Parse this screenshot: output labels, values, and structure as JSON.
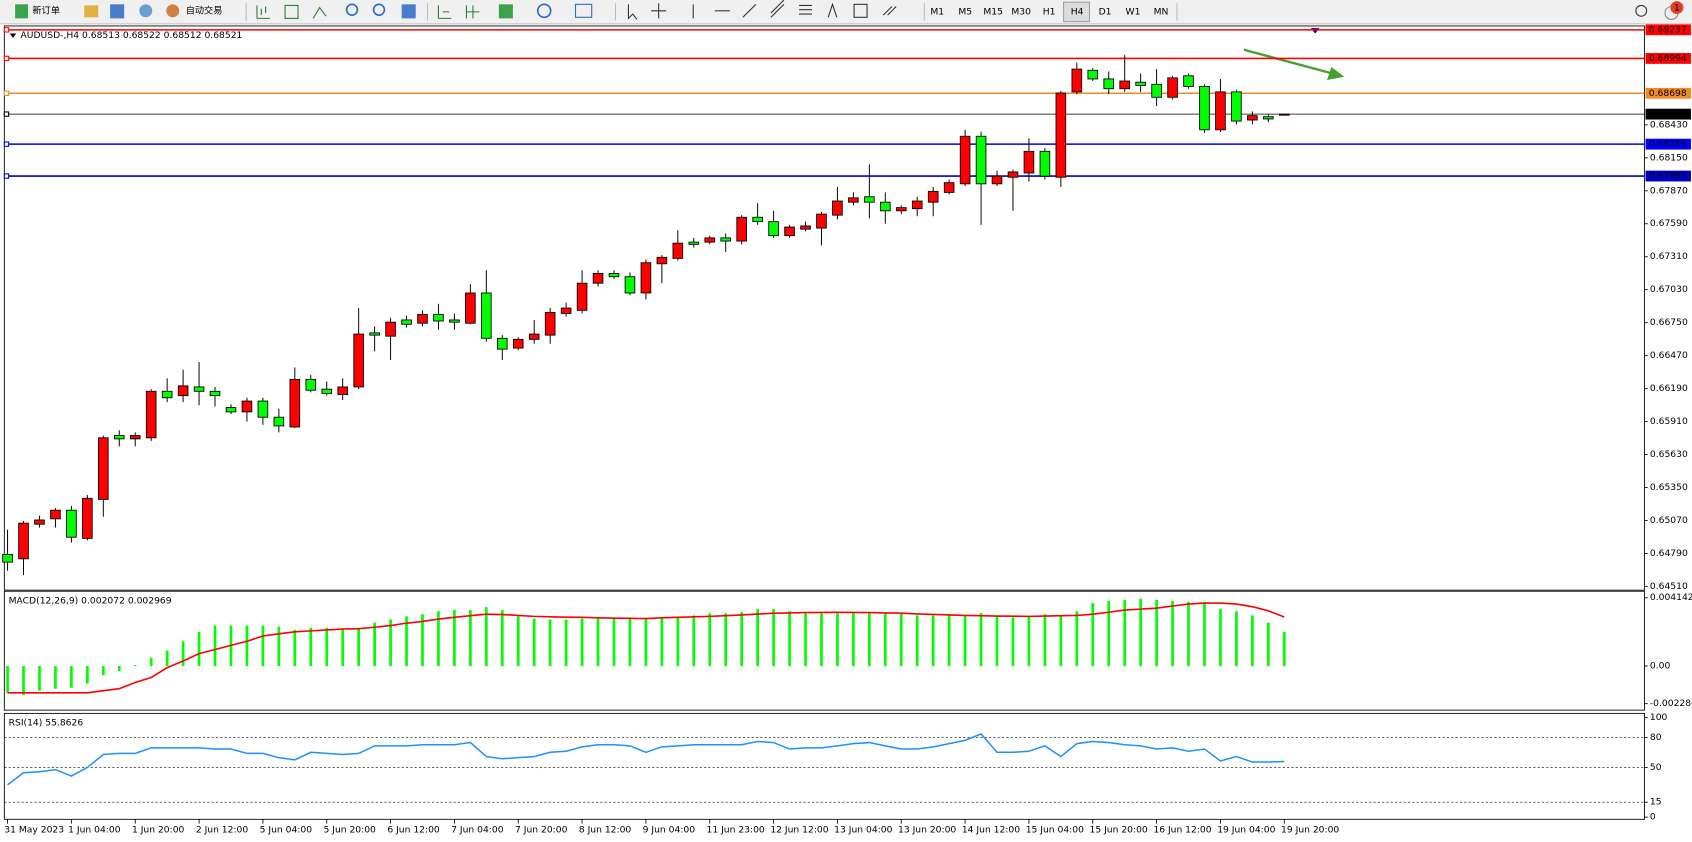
{
  "toolbar": {
    "buttons": [
      "新订单",
      "自动交易"
    ],
    "timeframes": [
      "M1",
      "M5",
      "M15",
      "M30",
      "H1",
      "H4",
      "D1",
      "W1",
      "MN"
    ],
    "badge": 1
  },
  "chart_data": [
    {
      "type": "candlestick",
      "title": "AUDUSD-,H4  0.68513 0.68522 0.68512 0.68521",
      "up_color": "#ff0000",
      "down_color": "#00ff00",
      "categories": [
        "31 May 2023",
        null,
        null,
        null,
        "1 Jun 04:00",
        null,
        null,
        null,
        "1 Jun 20:00",
        null,
        null,
        null,
        "2 Jun 12:00",
        null,
        null,
        null,
        "5 Jun 04:00",
        null,
        null,
        null,
        "5 Jun 20:00",
        null,
        null,
        null,
        "6 Jun 12:00",
        null,
        null,
        null,
        "7 Jun 04:00",
        null,
        null,
        null,
        "7 Jun 20:00",
        null,
        null,
        null,
        "8 Jun 12:00",
        null,
        null,
        null,
        "9 Jun 04:00",
        null,
        null,
        null,
        "11 Jun 23:00",
        null,
        null,
        null,
        "12 Jun 12:00",
        null,
        null,
        null,
        "13 Jun 04:00",
        null,
        null,
        null,
        "13 Jun 20:00",
        null,
        null,
        null,
        "14 Jun 12:00",
        null,
        null,
        null,
        "15 Jun 04:00",
        null,
        null,
        null,
        "15 Jun 20:00",
        null,
        null,
        null,
        "16 Jun 12:00",
        null,
        null,
        null,
        "19 Jun 04:00",
        null,
        null,
        null,
        "19 Jun 20:00"
      ],
      "open": [
        0.64781,
        0.64744,
        0.65038,
        0.65084,
        0.65157,
        0.64918,
        0.65249,
        0.65791,
        0.65763,
        0.65772,
        0.66167,
        0.6613,
        0.66204,
        0.66167,
        0.66029,
        0.65992,
        0.66084,
        0.65947,
        0.65864,
        0.66268,
        0.66185,
        0.66139,
        0.66204,
        0.66663,
        0.66635,
        0.66773,
        0.66745,
        0.66819,
        0.66773,
        0.66745,
        0.67002,
        0.66617,
        0.66534,
        0.66608,
        0.66644,
        0.66828,
        0.66855,
        0.67085,
        0.67168,
        0.6714,
        0.67002,
        0.6725,
        0.67296,
        0.67434,
        0.67434,
        0.6747,
        0.67443,
        0.67645,
        0.67608,
        0.67489,
        0.67544,
        0.67553,
        0.67663,
        0.67773,
        0.67819,
        0.67773,
        0.677,
        0.67718,
        0.67773,
        0.67856,
        0.67929,
        0.68333,
        0.67929,
        0.67985,
        0.68021,
        0.68205,
        0.67985,
        0.6871,
        0.68893,
        0.6882,
        0.68737,
        0.68792,
        0.68774,
        0.68664,
        0.68847,
        0.68756,
        0.68388,
        0.6871,
        0.68471,
        0.68499,
        0.68513
      ],
      "high": [
        0.64992,
        0.65065,
        0.65111,
        0.65175,
        0.65194,
        0.65286,
        0.65791,
        0.65836,
        0.65818,
        0.66185,
        0.66277,
        0.6635,
        0.66415,
        0.66204,
        0.66057,
        0.66112,
        0.66112,
        0.6602,
        0.66369,
        0.66305,
        0.6625,
        0.66277,
        0.66874,
        0.66718,
        0.66791,
        0.66809,
        0.66855,
        0.6691,
        0.66828,
        0.67076,
        0.67195,
        0.66644,
        0.66626,
        0.66773,
        0.66874,
        0.6692,
        0.67195,
        0.67195,
        0.67195,
        0.67177,
        0.67287,
        0.67324,
        0.67535,
        0.6747,
        0.67489,
        0.67507,
        0.67663,
        0.67764,
        0.677,
        0.67581,
        0.67608,
        0.67691,
        0.67902,
        0.67856,
        0.68095,
        0.67856,
        0.67746,
        0.67819,
        0.67902,
        0.67966,
        0.68388,
        0.6837,
        0.6804,
        0.68049,
        0.68315,
        0.68232,
        0.68719,
        0.68958,
        0.68912,
        0.68884,
        0.69022,
        0.68866,
        0.68903,
        0.68847,
        0.68866,
        0.68774,
        0.6882,
        0.68728,
        0.68544,
        0.68517,
        0.68522
      ],
      "low": [
        0.64643,
        0.64606,
        0.6501,
        0.6501,
        0.64882,
        0.649,
        0.65102,
        0.65699,
        0.65699,
        0.65745,
        0.66075,
        0.66075,
        0.66048,
        0.66038,
        0.65974,
        0.6591,
        0.65882,
        0.65818,
        0.65855,
        0.66158,
        0.6613,
        0.66093,
        0.66185,
        0.66507,
        0.66433,
        0.66709,
        0.66718,
        0.6669,
        0.6669,
        0.66736,
        0.66589,
        0.66433,
        0.66516,
        0.66571,
        0.66571,
        0.668,
        0.66828,
        0.67057,
        0.67122,
        0.66984,
        0.66947,
        0.67085,
        0.67278,
        0.67388,
        0.67415,
        0.67351,
        0.67415,
        0.67581,
        0.6747,
        0.6747,
        0.67526,
        0.67406,
        0.67627,
        0.67746,
        0.67636,
        0.6759,
        0.67672,
        0.67654,
        0.67654,
        0.67838,
        0.67911,
        0.67581,
        0.67911,
        0.677,
        0.67948,
        0.67966,
        0.67902,
        0.68691,
        0.68802,
        0.68691,
        0.6871,
        0.6871,
        0.6859,
        0.68645,
        0.68737,
        0.68361,
        0.6837,
        0.68434,
        0.68434,
        0.68453,
        0.68512
      ],
      "close": [
        0.64716,
        0.65047,
        0.65074,
        0.65157,
        0.64928,
        0.65258,
        0.65772,
        0.65763,
        0.65791,
        0.66167,
        0.66112,
        0.66213,
        0.66167,
        0.6613,
        0.65992,
        0.66084,
        0.65947,
        0.65873,
        0.66268,
        0.66176,
        0.66149,
        0.66204,
        0.66653,
        0.66644,
        0.66754,
        0.66736,
        0.66819,
        0.66764,
        0.66754,
        0.67002,
        0.66617,
        0.66525,
        0.66608,
        0.66653,
        0.66837,
        0.66874,
        0.67085,
        0.67168,
        0.6714,
        0.67002,
        0.67259,
        0.67305,
        0.67425,
        0.67415,
        0.6747,
        0.67443,
        0.67645,
        0.67608,
        0.67489,
        0.67562,
        0.67571,
        0.67672,
        0.67783,
        0.6781,
        0.67773,
        0.677,
        0.67727,
        0.67783,
        0.67865,
        0.67939,
        0.68333,
        0.67929,
        0.67994,
        0.6803,
        0.68205,
        0.67994,
        0.68701,
        0.68903,
        0.6882,
        0.68737,
        0.68802,
        0.68765,
        0.68664,
        0.68829,
        0.68756,
        0.68388,
        0.6871,
        0.68462,
        0.68508,
        0.6848,
        0.68521
      ],
      "levels": [
        {
          "value": 0.69237,
          "color": "#ff0000"
        },
        {
          "value": 0.68994,
          "color": "#ff0000"
        },
        {
          "value": 0.68698,
          "color": "#f08a24"
        },
        {
          "value": 0.68521,
          "color": "#000000"
        },
        {
          "value": 0.68266,
          "color": "#0000ff"
        },
        {
          "value": 0.67995,
          "color": "#0000cc"
        }
      ],
      "ylim": [
        0.64478,
        0.6927
      ],
      "yticks": [
        {
          "value": 0.6843,
          "label": "0.68430"
        },
        {
          "value": 0.6815,
          "label": "0.68150"
        },
        {
          "value": 0.6787,
          "label": "0.67870"
        },
        {
          "value": 0.6759,
          "label": "0.67590"
        },
        {
          "value": 0.6731,
          "label": "0.67310"
        },
        {
          "value": 0.6703,
          "label": "0.67030"
        },
        {
          "value": 0.6675,
          "label": "0.66750"
        },
        {
          "value": 0.6647,
          "label": "0.66470"
        },
        {
          "value": 0.6619,
          "label": "0.66190"
        },
        {
          "value": 0.6591,
          "label": "0.65910"
        },
        {
          "value": 0.6563,
          "label": "0.65630"
        },
        {
          "value": 0.6535,
          "label": "0.65350"
        },
        {
          "value": 0.6507,
          "label": "0.65070"
        },
        {
          "value": 0.6479,
          "label": "0.64790"
        },
        {
          "value": 0.6451,
          "label": "0.64510"
        }
      ]
    },
    {
      "type": "macd",
      "title": "MACD(12,26,9) 0.002072 0.002969",
      "series": [
        {
          "name": "MACD",
          "color": "#00ff00",
          "values": [
            -0.00163,
            -0.00176,
            -0.0015,
            -0.00138,
            -0.00132,
            -0.00107,
            -0.00056,
            -0.00031,
            6e-05,
            0.0005,
            0.00094,
            0.0015,
            0.00207,
            0.00245,
            0.00245,
            0.00245,
            0.00245,
            0.00238,
            0.00219,
            0.00232,
            0.00232,
            0.00226,
            0.00232,
            0.00263,
            0.00282,
            0.00301,
            0.00314,
            0.00332,
            0.00339,
            0.00339,
            0.00357,
            0.00339,
            0.00301,
            0.00288,
            0.00282,
            0.00282,
            0.00288,
            0.00295,
            0.00295,
            0.00295,
            0.00288,
            0.00295,
            0.00301,
            0.00307,
            0.0032,
            0.0032,
            0.00326,
            0.00345,
            0.00345,
            0.00332,
            0.0032,
            0.0032,
            0.0032,
            0.00326,
            0.00326,
            0.00326,
            0.0032,
            0.00307,
            0.00307,
            0.00307,
            0.00307,
            0.0032,
            0.00301,
            0.00295,
            0.00301,
            0.00314,
            0.00301,
            0.00332,
            0.00382,
            0.00395,
            0.00401,
            0.00408,
            0.00401,
            0.00395,
            0.00389,
            0.00389,
            0.00345,
            0.00332,
            0.00307,
            0.00263,
            0.002072
          ]
        },
        {
          "name": "Signal",
          "color": "#ff0000",
          "values": [
            -0.00163,
            -0.00163,
            -0.00163,
            -0.00163,
            -0.00163,
            -0.00163,
            -0.0015,
            -0.00138,
            -0.001,
            -0.0007,
            -0.0001,
            0.0003,
            0.00075,
            0.001,
            0.00125,
            0.0015,
            0.00182,
            0.00195,
            0.00207,
            0.00213,
            0.00219,
            0.00224,
            0.00226,
            0.00235,
            0.00245,
            0.0026,
            0.0027,
            0.00285,
            0.00295,
            0.00305,
            0.00314,
            0.00312,
            0.00307,
            0.00301,
            0.00298,
            0.00296,
            0.00295,
            0.00292,
            0.0029,
            0.00289,
            0.00288,
            0.00292,
            0.00295,
            0.00298,
            0.00301,
            0.00305,
            0.0031,
            0.00315,
            0.0032,
            0.00322,
            0.00324,
            0.00325,
            0.00326,
            0.00325,
            0.00324,
            0.00322,
            0.0032,
            0.00316,
            0.00313,
            0.0031,
            0.00307,
            0.00305,
            0.00303,
            0.00302,
            0.00301,
            0.00303,
            0.00305,
            0.00307,
            0.00314,
            0.00326,
            0.00339,
            0.00345,
            0.00351,
            0.00364,
            0.00376,
            0.00382,
            0.00382,
            0.00376,
            0.0036,
            0.00335,
            0.002969
          ]
        }
      ],
      "ylim": [
        -0.002286,
        0.004142
      ],
      "yticks": [
        0.004142,
        {
          "value": 0,
          "label": "0.00"
        },
        -0.002286
      ]
    },
    {
      "type": "line",
      "title": "RSI(14) 55.8626",
      "color": "#1e90ff",
      "grid": true,
      "values": [
        32.6,
        44.6,
        45.7,
        47.8,
        41.3,
        50.0,
        63.0,
        64.1,
        64.1,
        69.6,
        69.6,
        69.6,
        69.6,
        68.5,
        68.5,
        64.1,
        64.1,
        59.8,
        57.6,
        65.2,
        64.1,
        63.0,
        64.1,
        71.7,
        71.7,
        71.7,
        72.8,
        72.8,
        72.8,
        75.0,
        60.9,
        58.7,
        59.8,
        60.9,
        65.2,
        66.3,
        70.7,
        72.8,
        72.8,
        71.7,
        65.2,
        70.7,
        71.7,
        72.8,
        72.8,
        72.8,
        72.8,
        76.1,
        75.0,
        68.5,
        69.6,
        69.6,
        71.7,
        73.9,
        75.0,
        71.7,
        68.5,
        68.5,
        70.7,
        73.9,
        77.2,
        83.7,
        65.2,
        65.2,
        66.3,
        71.7,
        60.9,
        73.9,
        76.1,
        75.0,
        72.8,
        71.7,
        68.5,
        69.6,
        66.3,
        68.5,
        56.5,
        60.9,
        55.4,
        55.4,
        55.9
      ],
      "ylim": [
        0,
        100
      ],
      "yticks": [
        100,
        80,
        50,
        15,
        0
      ]
    }
  ]
}
